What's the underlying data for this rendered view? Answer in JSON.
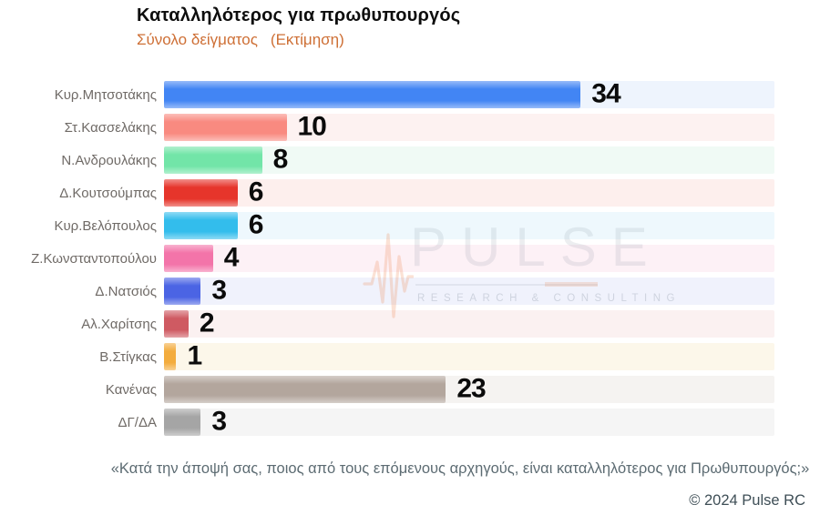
{
  "header": {
    "title": "Καταλληλότερος για πρωθυπουργός",
    "subtitle": "Σύνολο δείγματος",
    "subtitle_note": "(Εκτίμηση)",
    "subtitle_color": "#CE6F35"
  },
  "chart_data": {
    "type": "bar",
    "orientation": "horizontal",
    "title": "Καταλληλότερος για πρωθυπουργός",
    "subtitle": "Σύνολο δείγματος (Εκτίμηση)",
    "xlabel": "",
    "ylabel": "",
    "xlim": [
      0,
      50
    ],
    "grid": false,
    "value_labels": true,
    "categories": [
      "Κυρ.Μητσοτάκης",
      "Στ.Κασσελάκης",
      "Ν.Ανδρουλάκης",
      "Δ.Κουτσούμπας",
      "Κυρ.Βελόπουλος",
      "Ζ.Κωνσταντοπούλου",
      "Δ.Νατσιός",
      "Αλ.Χαρίτσης",
      "Β.Στίγκας",
      "Κανένας",
      "ΔΓ/ΔΑ"
    ],
    "values": [
      34,
      10,
      8,
      6,
      6,
      4,
      3,
      2,
      1,
      23,
      3
    ],
    "bar_colors": [
      "#4285F4",
      "#F98A80",
      "#72E5A8",
      "#E6352B",
      "#33BDEC",
      "#F374A9",
      "#4B64E4",
      "#CF5A62",
      "#F3AC3D",
      "#B3A69D",
      "#A5A5A5"
    ],
    "track_colors": [
      "#EEF4FD",
      "#FDF2F1",
      "#F0FAF5",
      "#FDEFED",
      "#EEF8FD",
      "#FDF1F6",
      "#F0F2FC",
      "#FBF1F1",
      "#FCF7EA",
      "#F5F3F1",
      "#F5F5F5"
    ]
  },
  "watermark": {
    "name": "PULSE",
    "tagline": "RESEARCH & CONSULTING",
    "ekg_color": "#E8783C"
  },
  "footer": {
    "quote": "«Κατά την άποψή σας, ποιος από τους επόμενους αρχηγούς, είναι καταλληλότερος για Πρωθυπουργός;»",
    "copyright": "© 2024 Pulse RC"
  }
}
